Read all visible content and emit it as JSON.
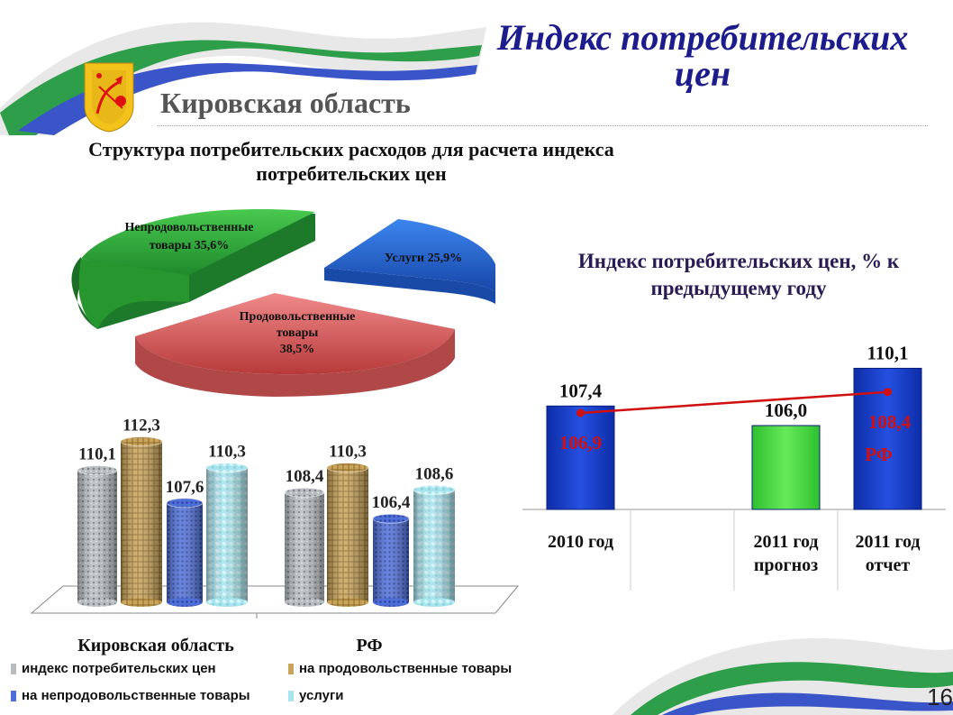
{
  "header": {
    "title": "Индекс потребительских цен",
    "region": "Кировская область",
    "subtitle": "Структура потребительских расходов для расчета индекса потребительских цен",
    "coat_of_arms_icon": "kirov-coat-of-arms-icon"
  },
  "slide_number": "16",
  "colors": {
    "title": "#1c1c8c",
    "green": "#2fae3a",
    "blue": "#1f5fd1",
    "red": "#e06060",
    "bar_blue": "#1a3fc0",
    "bar_green": "#3fd13f",
    "line_red": "#d01010"
  },
  "chart_data": [
    {
      "type": "pie",
      "title": "Структура потребительских расходов для расчета индекса потребительских цен",
      "slices": [
        {
          "label": "Непродовольственные товары",
          "value": 35.6,
          "text": "Непродовольственные товары 35,6%"
        },
        {
          "label": "Услуги",
          "value": 25.9,
          "text": "Услуги 25,9%"
        },
        {
          "label": "Продовольственные товары",
          "value": 38.5,
          "text": "Продовольственные товары 38,5%"
        }
      ]
    },
    {
      "type": "bar",
      "categories": [
        "Кировская область",
        "РФ"
      ],
      "series": [
        {
          "name": "индекс потребительских цен",
          "values": [
            110.1,
            108.4
          ],
          "labels": [
            "110,1",
            "108,4"
          ]
        },
        {
          "name": "на продовольственные товары",
          "values": [
            112.3,
            110.3
          ],
          "labels": [
            "112,3",
            "110,3"
          ]
        },
        {
          "name": "на непродовольственные товары",
          "values": [
            107.6,
            106.4
          ],
          "labels": [
            "107,6",
            "106,4"
          ]
        },
        {
          "name": "услуги",
          "values": [
            110.3,
            108.6
          ],
          "labels": [
            "110,3",
            "108,6"
          ]
        }
      ],
      "legend": "bottom"
    },
    {
      "type": "bar",
      "title": "Индекс потребительских цен, % к предыдущему году",
      "categories": [
        "2010 год",
        "2011 год прогноз",
        "2011 год отчет"
      ],
      "category_lines": [
        [
          "2010 год"
        ],
        [
          "2011 год",
          "прогноз"
        ],
        [
          "2011 год",
          "отчет"
        ]
      ],
      "values": [
        107.4,
        106.0,
        110.1
      ],
      "labels": [
        "107,4",
        "106,0",
        "110,1"
      ],
      "line_series": {
        "name": "РФ",
        "values": [
          106.9,
          null,
          108.4
        ],
        "labels": [
          "106,9",
          "",
          "108,4"
        ]
      }
    }
  ]
}
